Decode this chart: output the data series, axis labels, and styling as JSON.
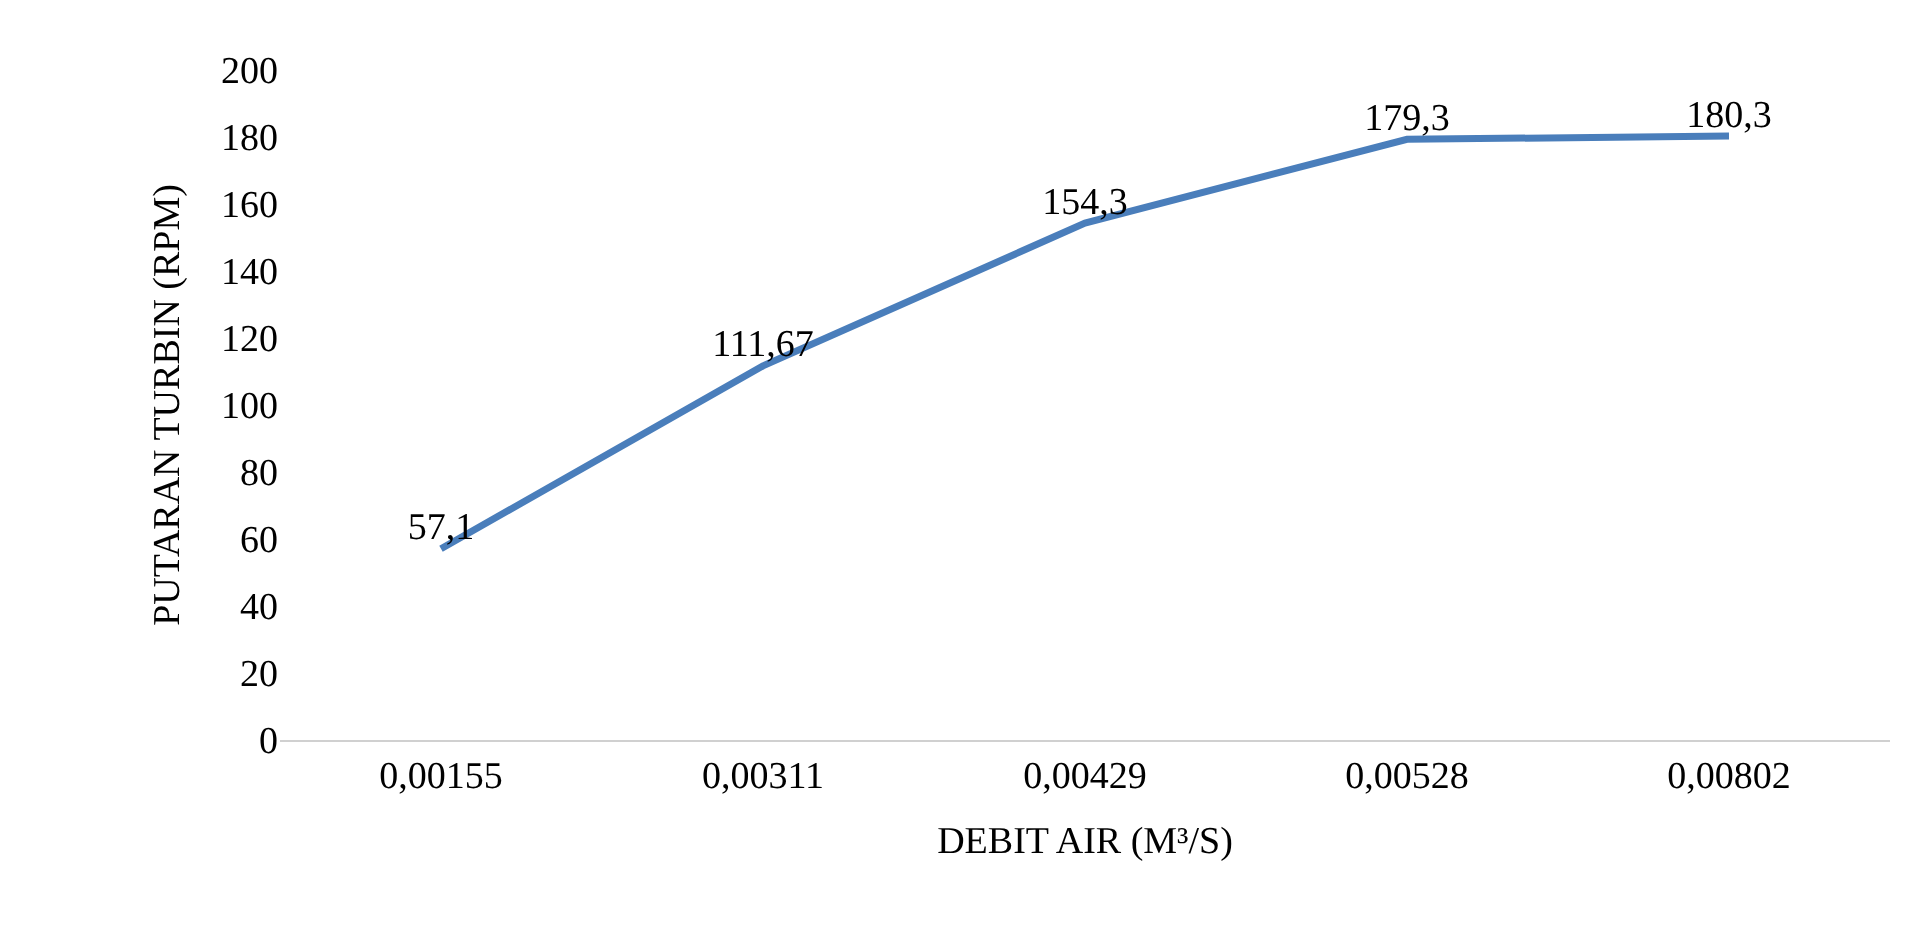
{
  "chart_data": {
    "type": "line",
    "xlabel": "DEBIT AIR (M³/S)",
    "ylabel": "PUTARAN TURBIN (RPM)",
    "categories": [
      "0,00155",
      "0,00311",
      "0,00429",
      "0,00528",
      "0,00802"
    ],
    "series": [
      {
        "color": "#4a7ebb",
        "values": [
          57.1,
          111.67,
          154.3,
          179.3,
          180.3
        ],
        "value_labels": [
          "57,1",
          "111,67",
          "154,3",
          "179,3",
          "180,3"
        ]
      }
    ],
    "ylim": [
      0,
      200
    ],
    "yticks": [
      0,
      20,
      40,
      60,
      80,
      100,
      120,
      140,
      160,
      180,
      200
    ],
    "grid": false,
    "legend": false,
    "marker": "none",
    "line_style": "solid"
  }
}
